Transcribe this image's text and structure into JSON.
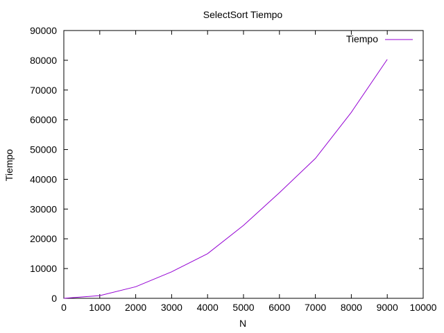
{
  "chart_data": {
    "type": "line",
    "title": "SelectSort Tiempo",
    "xlabel": "N",
    "ylabel": "Tiempo",
    "xlim": [
      0,
      10000
    ],
    "ylim": [
      0,
      90000
    ],
    "xticks": [
      "0",
      "1000",
      "2000",
      "3000",
      "4000",
      "5000",
      "6000",
      "7000",
      "8000",
      "9000",
      "10000"
    ],
    "yticks": [
      "0",
      "10000",
      "20000",
      "30000",
      "40000",
      "50000",
      "60000",
      "70000",
      "80000",
      "90000"
    ],
    "grid": false,
    "legend_position": "top-right",
    "series": [
      {
        "name": "Tiempo",
        "color": "#9400d3",
        "x": [
          0,
          1000,
          2000,
          3000,
          4000,
          5000,
          6000,
          7000,
          8000,
          9000
        ],
        "y": [
          0,
          900,
          3900,
          8900,
          15000,
          24500,
          35500,
          47000,
          62500,
          80300
        ]
      }
    ]
  }
}
